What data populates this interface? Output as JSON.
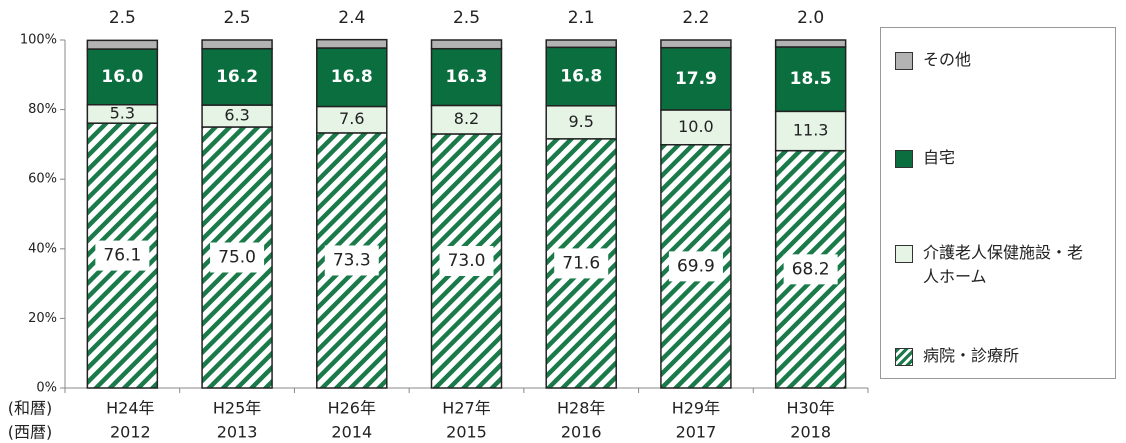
{
  "chart_data": {
    "type": "stacked_bar",
    "categories": [
      "H24年",
      "H25年",
      "H26年",
      "H27年",
      "H28年",
      "H29年",
      "H30年"
    ],
    "category_years": [
      "2012",
      "2013",
      "2014",
      "2015",
      "2016",
      "2017",
      "2018"
    ],
    "category_row_labels": [
      "(和暦)",
      "(西暦)"
    ],
    "series": [
      {
        "name": "病院・診療所",
        "color": "#1a7a4a",
        "pattern": "hatch",
        "values": [
          76.1,
          75.0,
          73.3,
          73.0,
          71.6,
          69.9,
          68.2
        ],
        "value_labels": [
          "76.1",
          "75.0",
          "73.3",
          "73.0",
          "71.6",
          "69.9",
          "68.2"
        ]
      },
      {
        "name": "介護老人保健施設・老人ホーム",
        "color": "#e6f4e6",
        "values": [
          5.3,
          6.3,
          7.6,
          8.2,
          9.5,
          10.0,
          11.3
        ],
        "value_labels": [
          "5.3",
          "6.3",
          "7.6",
          "8.2",
          "9.5",
          "10.0",
          "11.3"
        ]
      },
      {
        "name": "自宅",
        "color": "#0b6e3f",
        "values": [
          16.0,
          16.2,
          16.8,
          16.3,
          16.8,
          17.9,
          18.5
        ],
        "value_labels": [
          "16.0",
          "16.2",
          "16.8",
          "16.3",
          "16.8",
          "17.9",
          "18.5"
        ]
      },
      {
        "name": "その他",
        "color": "#b3b3b3",
        "values": [
          2.5,
          2.5,
          2.4,
          2.5,
          2.1,
          2.2,
          2.0
        ],
        "value_labels": [
          "2.5",
          "2.5",
          "2.4",
          "2.5",
          "2.1",
          "2.2",
          "2.0"
        ]
      }
    ],
    "ylim": [
      0,
      100
    ],
    "yticks": [
      {
        "value": 0,
        "label": "0%"
      },
      {
        "value": 20,
        "label": "20%"
      },
      {
        "value": 40,
        "label": "40%"
      },
      {
        "value": 60,
        "label": "60%"
      },
      {
        "value": 80,
        "label": "80%"
      },
      {
        "value": 100,
        "label": "100%"
      }
    ],
    "legend": "right"
  }
}
